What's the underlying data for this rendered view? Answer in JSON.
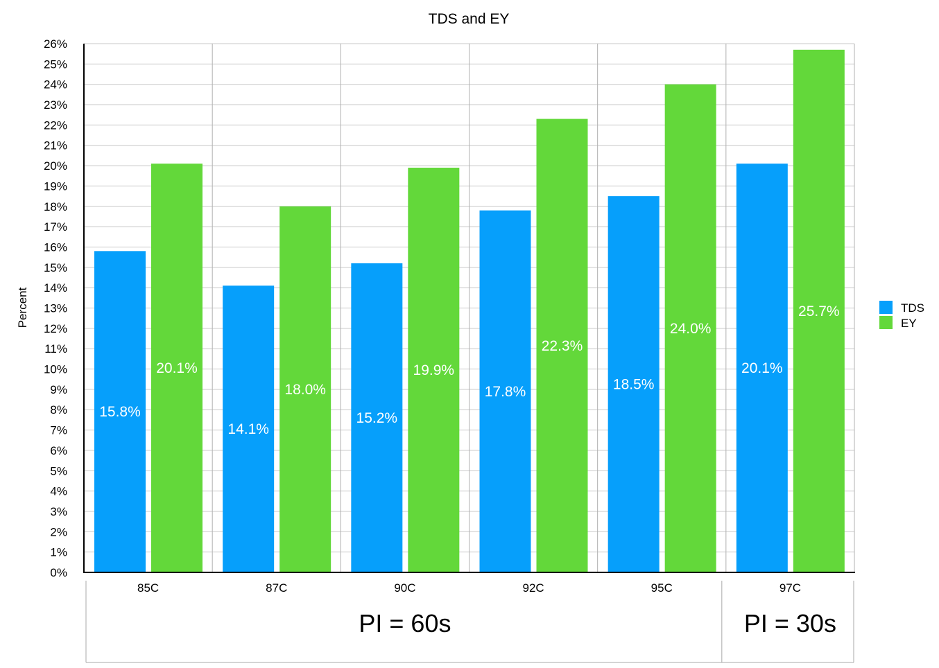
{
  "chart_data": {
    "type": "bar",
    "title": "TDS and EY",
    "xlabel": "",
    "ylabel": "Percent",
    "ylim": [
      0,
      26
    ],
    "ytick_step": 1,
    "ytick_suffix": "%",
    "grid": true,
    "legend_position": "right",
    "categories": [
      "85C",
      "87C",
      "90C",
      "92C",
      "95C",
      "97C"
    ],
    "series": [
      {
        "name": "TDS",
        "color": "#069ffb",
        "values": [
          15.8,
          14.1,
          15.2,
          17.8,
          18.5,
          20.1
        ],
        "labels": [
          "15.8%",
          "14.1%",
          "15.2%",
          "17.8%",
          "18.5%",
          "20.1%"
        ]
      },
      {
        "name": "EY",
        "color": "#63d83a",
        "values": [
          20.1,
          18.0,
          19.9,
          22.3,
          24.0,
          25.7
        ],
        "labels": [
          "20.1%",
          "18.0%",
          "19.9%",
          "22.3%",
          "24.0%",
          "25.7%"
        ]
      }
    ],
    "category_groups": [
      {
        "label": "PI = 60s",
        "categories": [
          "85C",
          "87C",
          "90C",
          "92C",
          "95C"
        ]
      },
      {
        "label": "PI = 30s",
        "categories": [
          "97C"
        ]
      }
    ]
  }
}
